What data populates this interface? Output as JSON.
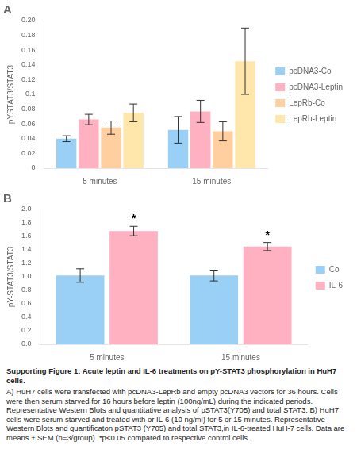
{
  "chart_data": [
    {
      "type": "bar",
      "title": "A",
      "categories": [
        "5 minutes",
        "15 minutes"
      ],
      "series": [
        {
          "name": "pcDNA3-Co",
          "values": [
            0.04,
            0.052
          ],
          "errors": [
            0.004,
            0.018
          ]
        },
        {
          "name": "pcDNA3-Leptin",
          "values": [
            0.066,
            0.077
          ],
          "errors": [
            0.007,
            0.015
          ]
        },
        {
          "name": "LepRb-Co",
          "values": [
            0.055,
            0.05
          ],
          "errors": [
            0.009,
            0.013
          ]
        },
        {
          "name": "LepRb-Leptin",
          "values": [
            0.075,
            0.145
          ],
          "errors": [
            0.012,
            0.045
          ]
        }
      ],
      "ylabel": "pYSTAT3/STAT3",
      "ylim": [
        0,
        0.2
      ],
      "yticks": [
        0,
        0.02,
        0.04,
        0.06,
        0.08,
        0.1,
        0.12,
        0.14,
        0.16,
        0.18,
        {
          "value": 0.2,
          "label": "0.20"
        }
      ],
      "grid": false,
      "legend": "right"
    },
    {
      "type": "bar",
      "title": "B",
      "categories": [
        "5 minutes",
        "15 minutes"
      ],
      "series": [
        {
          "name": "Co",
          "values": [
            1.02,
            1.02
          ],
          "errors": [
            0.1,
            0.08
          ]
        },
        {
          "name": "IL-6",
          "values": [
            1.68,
            1.45
          ],
          "errors": [
            0.07,
            0.06
          ]
        }
      ],
      "ylabel": "pY-STAT3/STAT3",
      "ylim": [
        0,
        2.0
      ],
      "yticks": [
        {
          "value": 0.0,
          "label": "0.0"
        },
        0.2,
        0.4,
        0.6,
        0.8,
        {
          "value": 1.0,
          "label": "1.0"
        },
        1.2,
        1.4,
        1.6,
        1.8,
        {
          "value": 2.0,
          "label": "2.0"
        }
      ],
      "grid": false,
      "legend": "right",
      "annotations": [
        {
          "text": "*",
          "category": "5 minutes",
          "series": "IL-6"
        },
        {
          "text": "*",
          "category": "15 minutes",
          "series": "IL-6"
        },
        {
          "text": "Supporting Figure 1: Acute leptin and IL-6 treatments on pY-STAT3 phosphorylation in HuH7 cells."
        },
        {
          "text": "A) HuH7 cells were transfected with pcDNA3-LepRb and empty pcDNA3 vectors for 36 hours.  Cells were then serum starved for 16 hours before leptin (100ng/mL) during the indicated periods.  Representative Western Blots and quantitative analysis of pSTAT3(Y705) and total STAT3.  B) HuH7 cells were serum starved and treated with or IL-6 (10 ng/ml) for 5 or 15 minutes.   Representative Western Blots and quantificaton pSTAT3 (Y705) and total STAT3,in IL-6-treated HuH-7 cells.   Data are means ± SEM (n=3/group).  *p<0.05 compared to respective control cells."
        }
      ]
    }
  ]
}
